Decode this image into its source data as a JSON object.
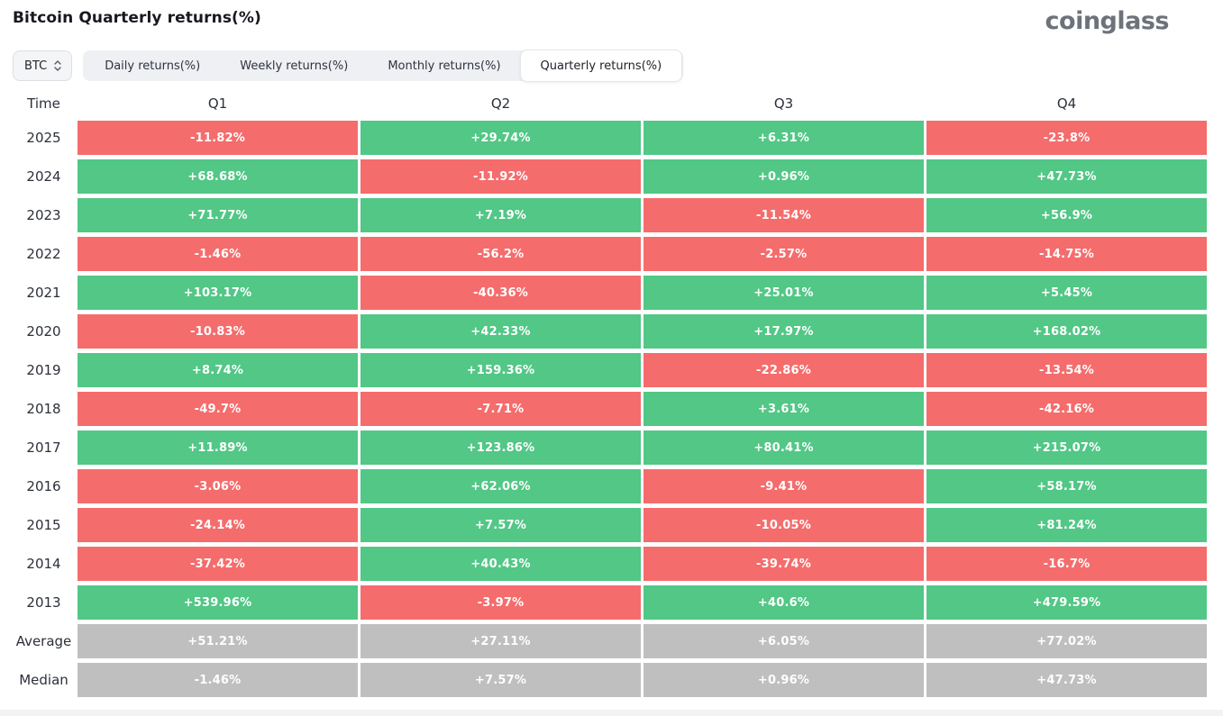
{
  "header": {
    "title": "Bitcoin Quarterly returns(%)",
    "logo": "coinglass"
  },
  "controls": {
    "symbol_select": {
      "value": "BTC"
    },
    "tabs": [
      {
        "label": "Daily returns(%)",
        "active": false
      },
      {
        "label": "Weekly returns(%)",
        "active": false
      },
      {
        "label": "Monthly returns(%)",
        "active": false
      },
      {
        "label": "Quarterly returns(%)",
        "active": true
      }
    ]
  },
  "chart_data": {
    "type": "table",
    "title": "Bitcoin Quarterly returns(%)",
    "columns": [
      "Time",
      "Q1",
      "Q2",
      "Q3",
      "Q4"
    ],
    "rows": [
      {
        "label": "2025",
        "summary": false,
        "values": [
          "-11.82%",
          "+29.74%",
          "+6.31%",
          "-23.8%"
        ]
      },
      {
        "label": "2024",
        "summary": false,
        "values": [
          "+68.68%",
          "-11.92%",
          "+0.96%",
          "+47.73%"
        ]
      },
      {
        "label": "2023",
        "summary": false,
        "values": [
          "+71.77%",
          "+7.19%",
          "-11.54%",
          "+56.9%"
        ]
      },
      {
        "label": "2022",
        "summary": false,
        "values": [
          "-1.46%",
          "-56.2%",
          "-2.57%",
          "-14.75%"
        ]
      },
      {
        "label": "2021",
        "summary": false,
        "values": [
          "+103.17%",
          "-40.36%",
          "+25.01%",
          "+5.45%"
        ]
      },
      {
        "label": "2020",
        "summary": false,
        "values": [
          "-10.83%",
          "+42.33%",
          "+17.97%",
          "+168.02%"
        ]
      },
      {
        "label": "2019",
        "summary": false,
        "values": [
          "+8.74%",
          "+159.36%",
          "-22.86%",
          "-13.54%"
        ]
      },
      {
        "label": "2018",
        "summary": false,
        "values": [
          "-49.7%",
          "-7.71%",
          "+3.61%",
          "-42.16%"
        ]
      },
      {
        "label": "2017",
        "summary": false,
        "values": [
          "+11.89%",
          "+123.86%",
          "+80.41%",
          "+215.07%"
        ]
      },
      {
        "label": "2016",
        "summary": false,
        "values": [
          "-3.06%",
          "+62.06%",
          "-9.41%",
          "+58.17%"
        ]
      },
      {
        "label": "2015",
        "summary": false,
        "values": [
          "-24.14%",
          "+7.57%",
          "-10.05%",
          "+81.24%"
        ]
      },
      {
        "label": "2014",
        "summary": false,
        "values": [
          "-37.42%",
          "+40.43%",
          "-39.74%",
          "-16.7%"
        ]
      },
      {
        "label": "2013",
        "summary": false,
        "values": [
          "+539.96%",
          "-3.97%",
          "+40.6%",
          "+479.59%"
        ]
      },
      {
        "label": "Average",
        "summary": true,
        "values": [
          "+51.21%",
          "+27.11%",
          "+6.05%",
          "+77.02%"
        ]
      },
      {
        "label": "Median",
        "summary": true,
        "values": [
          "-1.46%",
          "+7.57%",
          "+0.96%",
          "+47.73%"
        ]
      }
    ],
    "colors": {
      "positive": "#52c786",
      "negative": "#f56c6c",
      "summary": "#bfbfbf",
      "cell_text": "#ffffff"
    }
  }
}
